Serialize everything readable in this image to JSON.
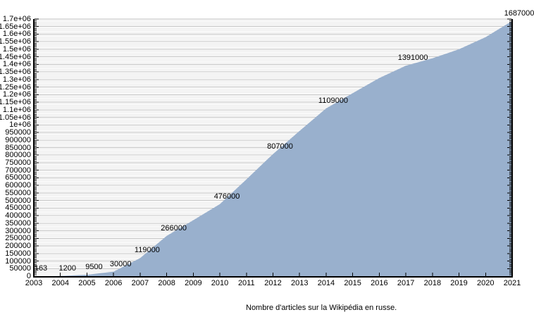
{
  "chart_data": {
    "type": "area",
    "title": "",
    "xlabel": "",
    "ylabel": "",
    "caption": "Nombre d'articles sur la Wikipédia en russe.",
    "grid": true,
    "legend": "none",
    "xlim": [
      2003,
      2021
    ],
    "ylim": [
      0,
      1700000
    ],
    "minor_grid_step": 10000,
    "area_color": "#99b0cd",
    "axis_color": "#000000",
    "major_grid_color": "#c0c0c0",
    "minor_grid_color": "#e8e8e8",
    "x": [
      2003,
      2004,
      2005,
      2006,
      2007,
      2008,
      2009,
      2010,
      2011,
      2012,
      2013,
      2014,
      2015,
      2016,
      2017,
      2018,
      2019,
      2020,
      2021
    ],
    "series": [
      {
        "name": "Nombre d'articles",
        "values": [
          163,
          1200,
          9500,
          30000,
          119000,
          266000,
          370000,
          476000,
          640000,
          807000,
          960000,
          1109000,
          1210000,
          1310000,
          1391000,
          1440000,
          1500000,
          1580000,
          1687000
        ]
      }
    ],
    "point_labels": [
      {
        "year": 2003,
        "value": 163,
        "text": "163"
      },
      {
        "year": 2004,
        "value": 1200,
        "text": "1200"
      },
      {
        "year": 2005,
        "value": 9500,
        "text": "9500"
      },
      {
        "year": 2006,
        "value": 30000,
        "text": "30000"
      },
      {
        "year": 2007,
        "value": 119000,
        "text": "119000"
      },
      {
        "year": 2008,
        "value": 266000,
        "text": "266000"
      },
      {
        "year": 2010,
        "value": 476000,
        "text": "476000"
      },
      {
        "year": 2012,
        "value": 807000,
        "text": "807000"
      },
      {
        "year": 2014,
        "value": 1109000,
        "text": "1109000"
      },
      {
        "year": 2017,
        "value": 1391000,
        "text": "1391000"
      },
      {
        "year": 2021,
        "value": 1687000,
        "text": "1687000"
      }
    ],
    "yticks": [
      {
        "value": 0,
        "label": "0"
      },
      {
        "value": 50000,
        "label": "50000"
      },
      {
        "value": 100000,
        "label": "100000"
      },
      {
        "value": 150000,
        "label": "150000"
      },
      {
        "value": 200000,
        "label": "200000"
      },
      {
        "value": 250000,
        "label": "250000"
      },
      {
        "value": 300000,
        "label": "300000"
      },
      {
        "value": 350000,
        "label": "350000"
      },
      {
        "value": 400000,
        "label": "400000"
      },
      {
        "value": 450000,
        "label": "450000"
      },
      {
        "value": 500000,
        "label": "500000"
      },
      {
        "value": 550000,
        "label": "550000"
      },
      {
        "value": 600000,
        "label": "600000"
      },
      {
        "value": 650000,
        "label": "650000"
      },
      {
        "value": 700000,
        "label": "700000"
      },
      {
        "value": 750000,
        "label": "750000"
      },
      {
        "value": 800000,
        "label": "800000"
      },
      {
        "value": 850000,
        "label": "850000"
      },
      {
        "value": 900000,
        "label": "900000"
      },
      {
        "value": 950000,
        "label": "950000"
      },
      {
        "value": 1000000,
        "label": "1e+06"
      },
      {
        "value": 1050000,
        "label": "1.05e+06"
      },
      {
        "value": 1100000,
        "label": "1.1e+06"
      },
      {
        "value": 1150000,
        "label": "1.15e+06"
      },
      {
        "value": 1200000,
        "label": "1.2e+06"
      },
      {
        "value": 1250000,
        "label": "1.25e+06"
      },
      {
        "value": 1300000,
        "label": "1.3e+06"
      },
      {
        "value": 1350000,
        "label": "1.35e+06"
      },
      {
        "value": 1400000,
        "label": "1.4e+06"
      },
      {
        "value": 1450000,
        "label": "1.45e+06"
      },
      {
        "value": 1500000,
        "label": "1.5e+06"
      },
      {
        "value": 1550000,
        "label": "1.55e+06"
      },
      {
        "value": 1600000,
        "label": "1.6e+06"
      },
      {
        "value": 1650000,
        "label": "1.65e+06"
      },
      {
        "value": 1700000,
        "label": "1.7e+06"
      }
    ]
  }
}
